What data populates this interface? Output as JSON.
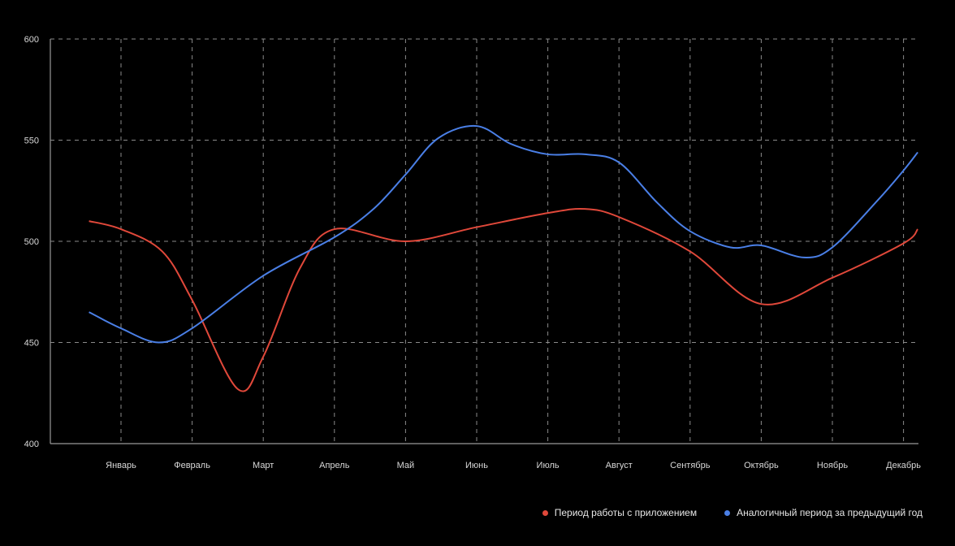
{
  "chart_data": {
    "type": "line",
    "title": "",
    "xlabel": "",
    "ylabel": "",
    "ylim": [
      400,
      600
    ],
    "yticks": [
      "400",
      "450",
      "500",
      "550",
      "600"
    ],
    "categories": [
      "Январь",
      "Февраль",
      "Март",
      "Апрель",
      "Май",
      "Июнь",
      "Июль",
      "Август",
      "Сентябрь",
      "Октябрь",
      "Ноябрь",
      "Декабрь"
    ],
    "grid": true,
    "legend_position": "bottom-right",
    "series": [
      {
        "name": "Период работы с приложением",
        "color": "#e0483a",
        "x": [
          -0.45,
          0,
          0.58,
          1,
          1.64,
          2,
          2.52,
          3,
          4,
          5,
          6,
          6.52,
          7,
          8,
          9,
          10,
          11,
          11.2
        ],
        "values": [
          510,
          506,
          495,
          471,
          427,
          443,
          487,
          506,
          500,
          507,
          514,
          516,
          512,
          495,
          469,
          482,
          499,
          506
        ]
      },
      {
        "name": "Аналогичный период за предыдущий год",
        "color": "#4a7fe6",
        "x": [
          -0.45,
          0,
          0.53,
          1,
          2,
          3,
          3.55,
          4,
          4.46,
          5,
          5.49,
          6,
          6.52,
          7,
          7.54,
          8,
          8.57,
          9,
          9.6,
          10,
          10.63,
          11,
          11.2
        ],
        "values": [
          465,
          457,
          450,
          457,
          483,
          502,
          516,
          533,
          551,
          557,
          548,
          543,
          543,
          539,
          519,
          505,
          497,
          498,
          492,
          497,
          520,
          535,
          544
        ]
      }
    ]
  }
}
